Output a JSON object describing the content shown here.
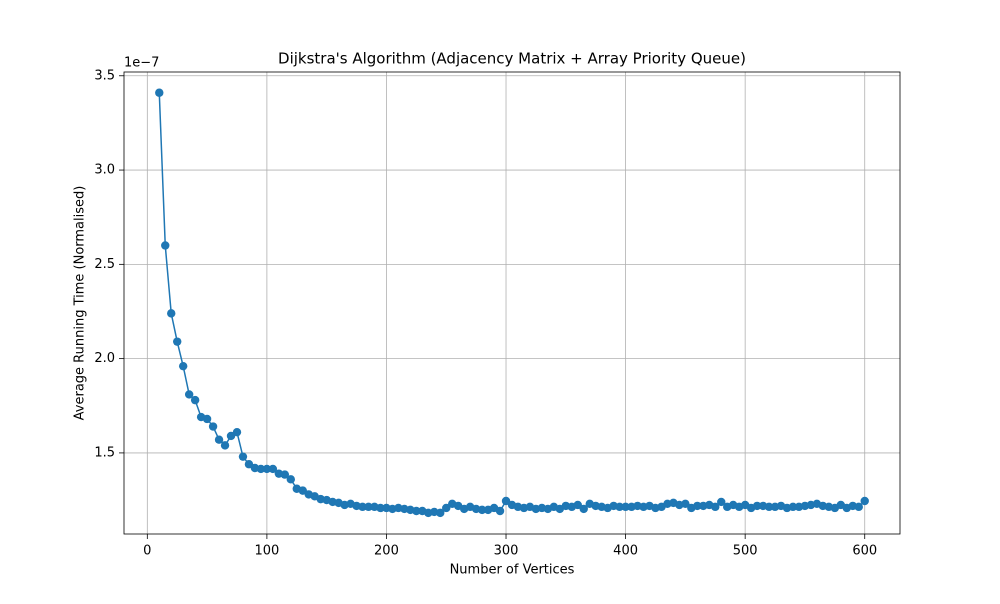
{
  "chart_data": {
    "type": "line",
    "title": "Dijkstra's Algorithm (Adjacency Matrix + Array Priority Queue)",
    "x_label": "Number of Vertices",
    "y_label": "Average Running Time (Normalised)",
    "y_offset_label": "1e−7",
    "x": [
      10,
      15,
      20,
      25,
      30,
      35,
      40,
      45,
      50,
      55,
      60,
      65,
      70,
      75,
      80,
      85,
      90,
      95,
      100,
      105,
      110,
      115,
      120,
      125,
      130,
      135,
      140,
      145,
      150,
      155,
      160,
      165,
      170,
      175,
      180,
      185,
      190,
      195,
      200,
      205,
      210,
      215,
      220,
      225,
      230,
      235,
      240,
      245,
      250,
      255,
      260,
      265,
      270,
      275,
      280,
      285,
      290,
      295,
      300,
      305,
      310,
      315,
      320,
      325,
      330,
      335,
      340,
      345,
      350,
      355,
      360,
      365,
      370,
      375,
      380,
      385,
      390,
      395,
      400,
      405,
      410,
      415,
      420,
      425,
      430,
      435,
      440,
      445,
      450,
      455,
      460,
      465,
      470,
      475,
      480,
      485,
      490,
      495,
      500,
      505,
      510,
      515,
      520,
      525,
      530,
      535,
      540,
      545,
      550,
      555,
      560,
      565,
      570,
      575,
      580,
      585,
      590,
      595,
      600
    ],
    "values": [
      3.41,
      2.6,
      2.24,
      2.09,
      1.96,
      1.81,
      1.78,
      1.69,
      1.68,
      1.64,
      1.57,
      1.54,
      1.59,
      1.61,
      1.48,
      1.44,
      1.42,
      1.415,
      1.415,
      1.415,
      1.39,
      1.385,
      1.36,
      1.31,
      1.3,
      1.28,
      1.27,
      1.255,
      1.25,
      1.24,
      1.235,
      1.224,
      1.23,
      1.219,
      1.214,
      1.214,
      1.214,
      1.208,
      1.208,
      1.203,
      1.208,
      1.203,
      1.198,
      1.192,
      1.192,
      1.182,
      1.187,
      1.182,
      1.208,
      1.23,
      1.219,
      1.203,
      1.214,
      1.203,
      1.198,
      1.198,
      1.208,
      1.192,
      1.245,
      1.224,
      1.214,
      1.208,
      1.214,
      1.203,
      1.208,
      1.203,
      1.214,
      1.203,
      1.219,
      1.214,
      1.224,
      1.203,
      1.23,
      1.219,
      1.214,
      1.208,
      1.219,
      1.214,
      1.214,
      1.214,
      1.219,
      1.214,
      1.219,
      1.208,
      1.214,
      1.23,
      1.235,
      1.224,
      1.23,
      1.208,
      1.219,
      1.219,
      1.224,
      1.214,
      1.24,
      1.214,
      1.224,
      1.214,
      1.224,
      1.208,
      1.219,
      1.219,
      1.214,
      1.214,
      1.219,
      1.208,
      1.214,
      1.214,
      1.219,
      1.224,
      1.23,
      1.219,
      1.214,
      1.208,
      1.224,
      1.208,
      1.219,
      1.214,
      1.245
    ],
    "color": "#1f77b4",
    "xlim": [
      -19.5,
      629.5
    ],
    "ylim": [
      1.07,
      3.52
    ],
    "xticks": [
      0,
      100,
      200,
      300,
      400,
      500,
      600
    ],
    "yticks": [
      1.5,
      {
        "value": 2,
        "label": "2.0"
      },
      2.5,
      {
        "value": 3,
        "label": "3.0"
      },
      3.5
    ],
    "grid": true
  }
}
